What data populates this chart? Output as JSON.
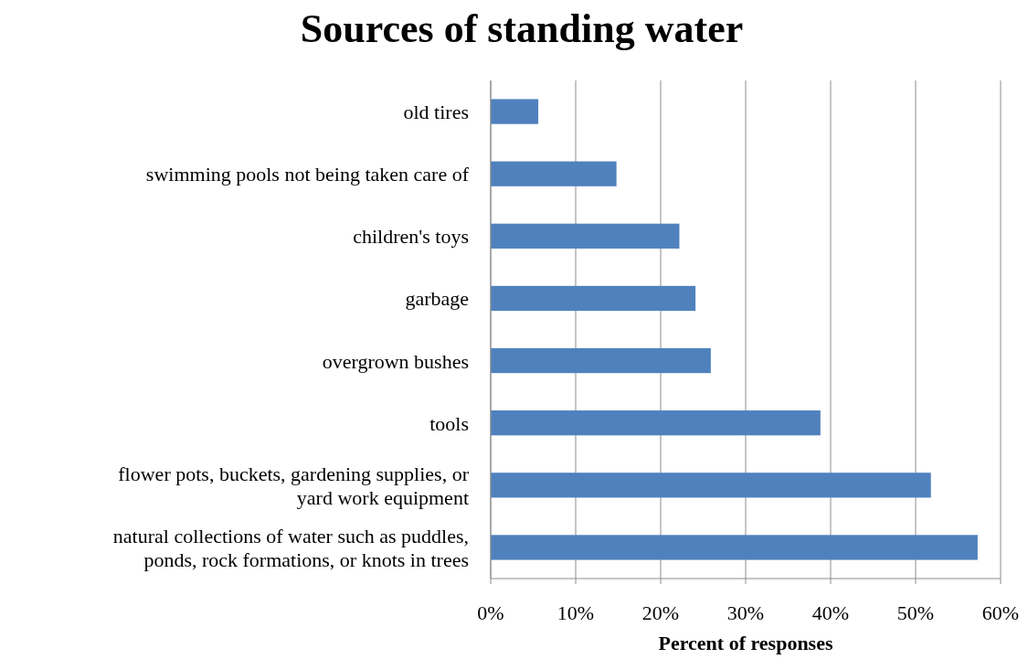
{
  "chart_data": {
    "type": "bar",
    "orientation": "horizontal",
    "title": "Sources of standing water",
    "xlabel": "Percent of responses",
    "categories": [
      "old tires",
      "swimming pools not being taken care of",
      "children's toys",
      "garbage",
      "overgrown bushes",
      "tools",
      "flower pots, buckets, gardening supplies, or yard work equipment",
      "natural collections of water such as puddles, ponds, rock formations, or knots in trees"
    ],
    "values": [
      5.6,
      14.8,
      22.2,
      24.1,
      25.9,
      38.8,
      51.8,
      57.3
    ],
    "color": "#4f81bd",
    "xlim": [
      0,
      60
    ],
    "xticks": [
      {
        "value": 0,
        "label": "0%"
      },
      {
        "value": 10,
        "label": "10%"
      },
      {
        "value": 20,
        "label": "20%"
      },
      {
        "value": 30,
        "label": "30%"
      },
      {
        "value": 40,
        "label": "40%"
      },
      {
        "value": 50,
        "label": "50%"
      },
      {
        "value": 60,
        "label": "60%"
      }
    ],
    "grid": "x"
  }
}
